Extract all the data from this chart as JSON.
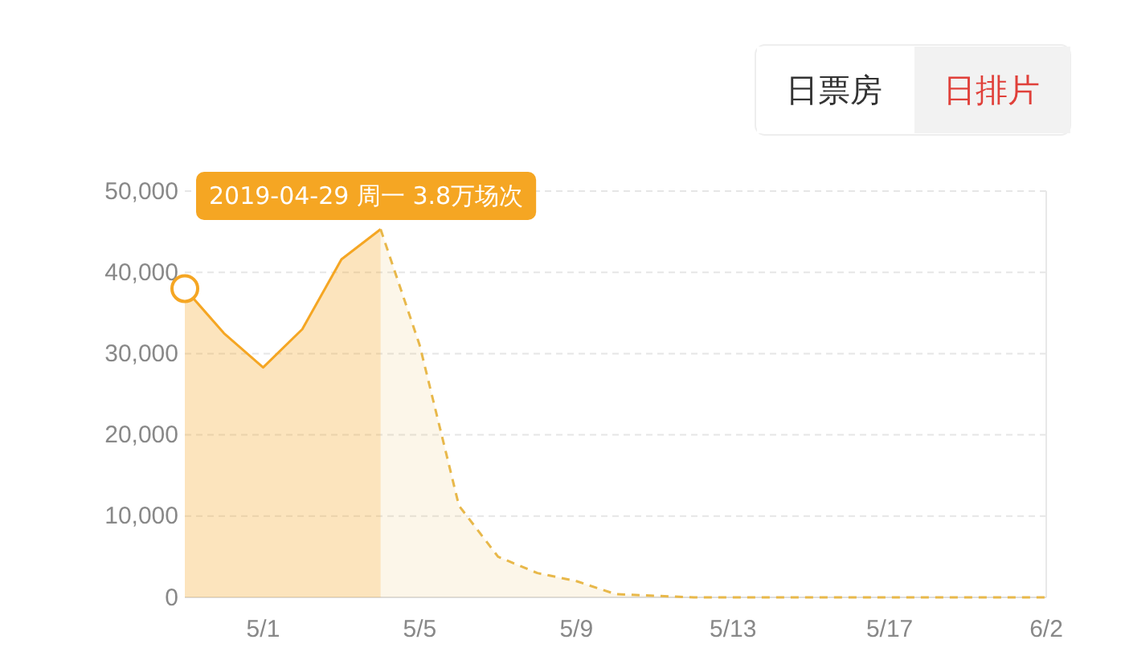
{
  "chart_data": {
    "type": "area",
    "categories": [
      null,
      null,
      "5/1",
      null,
      null,
      null,
      "5/5",
      null,
      null,
      null,
      "5/9",
      null,
      null,
      null,
      "5/13",
      null,
      null,
      null,
      "5/17",
      null,
      null,
      null,
      "6/2"
    ],
    "series": [
      {
        "color": "#f5a623",
        "line_style": "solid",
        "values": [
          38000,
          32500,
          28300,
          33000,
          41600,
          45300,
          null,
          null,
          null,
          null,
          null,
          null,
          null,
          null,
          null,
          null,
          null,
          null,
          null,
          null,
          null,
          null,
          null
        ]
      },
      {
        "color": "#e8b84a",
        "line_style": "dashed",
        "values": [
          null,
          null,
          null,
          null,
          null,
          45300,
          31000,
          11300,
          5000,
          3000,
          2000,
          400,
          200,
          0,
          0,
          0,
          0,
          0,
          0,
          0,
          0,
          0,
          0
        ]
      }
    ],
    "ylim": [
      0,
      50000
    ],
    "yticks": [
      0,
      {
        "value": 10000,
        "label": "10,000"
      },
      {
        "value": 20000,
        "label": "20,000"
      },
      {
        "value": 30000,
        "label": "30,000"
      },
      {
        "value": 40000,
        "label": "40,000"
      },
      {
        "value": 50000,
        "label": "50,000"
      }
    ],
    "grid": "y",
    "marker": "none",
    "annotations": [
      "2019-04-29 周一 3.8万场次",
      "日票房",
      "日排片"
    ]
  }
}
